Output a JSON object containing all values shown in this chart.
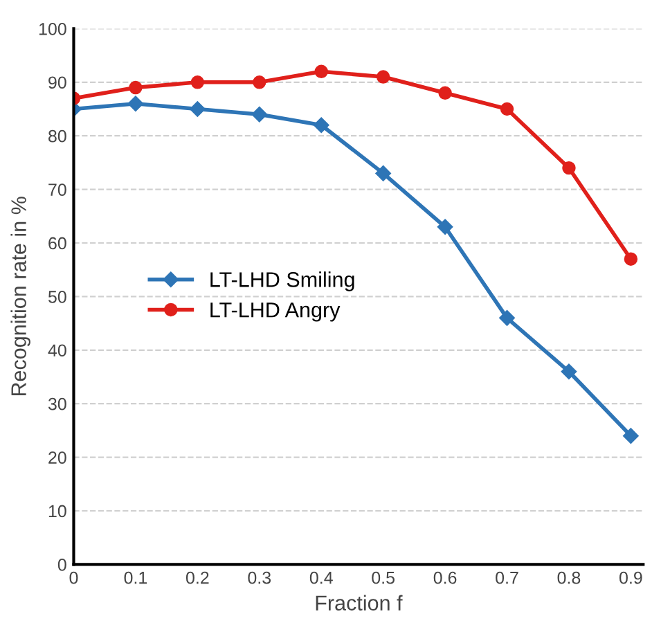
{
  "chart_data": {
    "type": "line",
    "xlabel": "Fraction f",
    "ylabel": "Recognition rate in %",
    "x": [
      0,
      0.1,
      0.2,
      0.3,
      0.4,
      0.5,
      0.6,
      0.7,
      0.8,
      0.9
    ],
    "series": [
      {
        "name": "LT-LHD Smiling",
        "color": "#2e75b6",
        "marker": "diamond",
        "values": [
          85,
          86,
          85,
          84,
          82,
          73,
          63,
          46,
          36,
          24
        ]
      },
      {
        "name": "LT-LHD Angry",
        "color": "#e0201b",
        "marker": "circle",
        "values": [
          87,
          89,
          90,
          90,
          92,
          91,
          88,
          85,
          74,
          57
        ]
      }
    ],
    "xlim": [
      0,
      0.92
    ],
    "xticks": [
      0,
      0.1,
      0.2,
      0.3,
      0.4,
      0.5,
      0.6,
      0.7,
      0.8,
      0.9
    ],
    "ylim": [
      0,
      100
    ],
    "yticks": [
      0,
      10,
      20,
      30,
      40,
      50,
      60,
      70,
      80,
      90,
      100
    ],
    "grid": "y",
    "legend": "left",
    "line_style": "solid"
  }
}
